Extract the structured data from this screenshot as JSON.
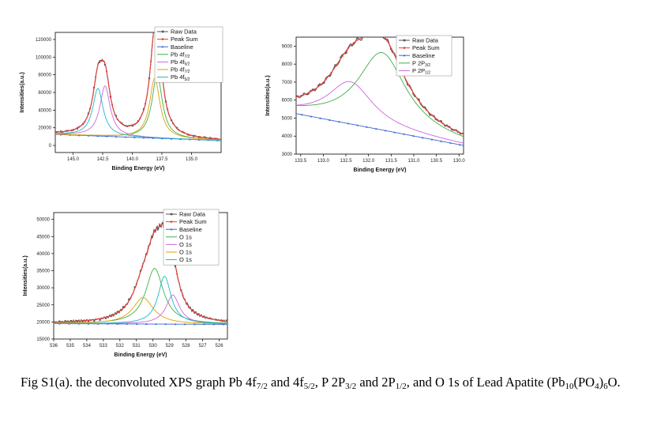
{
  "chart_data": [
    {
      "type": "line",
      "xlabel": "Binding Energy (eV)",
      "ylabel": "Intensities(a.u.)",
      "xlim": [
        146.5,
        132.5
      ],
      "ylim": [
        -8000,
        128000
      ],
      "xticks": [
        145.0,
        142.5,
        140.0,
        137.5,
        135.0
      ],
      "xticklabels": [
        "145.0",
        "142.5",
        "140.0",
        "137.5",
        "135.0"
      ],
      "yticks": [
        0,
        20000,
        40000,
        60000,
        80000,
        100000,
        120000
      ],
      "yticklabels": [
        "0",
        "20000",
        "40000",
        "60000",
        "80000",
        "100000",
        "120000"
      ],
      "legend_position": "top-right",
      "baseline": {
        "start": 12500,
        "end": 5500
      },
      "series": [
        {
          "name": "Raw Data",
          "color": "#555555",
          "marker": "square",
          "role": "raw"
        },
        {
          "name": "Peak Sum",
          "color": "#e8413a",
          "marker": "circle",
          "role": "sum"
        },
        {
          "name": "Baseline",
          "color": "#3a66d0",
          "marker": "triangle",
          "role": "baseline"
        },
        {
          "name": "Pb 4f",
          "sub": "7/2",
          "color": "#3cb04a",
          "role": "peak",
          "center": 137.9,
          "height": 72000,
          "fwhm": 1.05
        },
        {
          "name": "Pb 4f",
          "sub": "5/2",
          "color": "#cc66dd",
          "role": "peak",
          "center": 142.3,
          "height": 57000,
          "fwhm": 1.05
        },
        {
          "name": "Pb 4f",
          "sub": "7/2",
          "color": "#e0a000",
          "role": "peak",
          "center": 138.1,
          "height": 68000,
          "fwhm": 1.05
        },
        {
          "name": "Pb 4f",
          "sub": "5/2",
          "color": "#20b8c8",
          "role": "peak",
          "center": 142.9,
          "height": 54000,
          "fwhm": 1.05
        }
      ]
    },
    {
      "type": "line",
      "xlabel": "Binding Energy (eV)",
      "ylabel": "Intensities(a.u.)",
      "xlim": [
        133.6,
        129.9
      ],
      "ylim": [
        3000,
        9500
      ],
      "xticks": [
        133.5,
        133.0,
        132.5,
        132.0,
        131.5,
        131.0,
        130.5,
        130.0
      ],
      "xticklabels": [
        "133.5",
        "133.0",
        "132.5",
        "132.0",
        "131.5",
        "131.0",
        "130.5",
        "130.0"
      ],
      "yticks": [
        3000,
        4000,
        5000,
        6000,
        7000,
        8000,
        9000
      ],
      "yticklabels": [
        "3000",
        "4000",
        "5000",
        "6000",
        "7000",
        "8000",
        "9000"
      ],
      "legend_position": "top-right",
      "baseline": {
        "start": 5250,
        "end": 3480
      },
      "series": [
        {
          "name": "Raw Data",
          "color": "#555555",
          "marker": "square",
          "role": "raw"
        },
        {
          "name": "Peak Sum",
          "color": "#e8413a",
          "marker": "circle",
          "role": "sum"
        },
        {
          "name": "Baseline",
          "color": "#3a66d0",
          "marker": "triangle",
          "role": "baseline"
        },
        {
          "name": "P 2P",
          "sub": "3/2",
          "color": "#3cb04a",
          "role": "peak",
          "center": 131.7,
          "height": 4300,
          "fwhm": 1.3
        },
        {
          "name": "P 2P",
          "sub": "1/2",
          "color": "#cc66dd",
          "role": "peak",
          "center": 132.4,
          "height": 2350,
          "fwhm": 1.2
        }
      ]
    },
    {
      "type": "line",
      "xlabel": "Binding Energy (eV)",
      "ylabel": "Intensities(a.u.)",
      "xlim": [
        536,
        525.5
      ],
      "ylim": [
        15000,
        52000
      ],
      "xticks": [
        536,
        535,
        534,
        533,
        532,
        531,
        530,
        529,
        528,
        527,
        526
      ],
      "xticklabels": [
        "536",
        "535",
        "534",
        "533",
        "532",
        "531",
        "530",
        "529",
        "528",
        "527",
        "526"
      ],
      "yticks": [
        15000,
        20000,
        25000,
        30000,
        35000,
        40000,
        45000,
        50000
      ],
      "yticklabels": [
        "15000",
        "20000",
        "25000",
        "30000",
        "35000",
        "40000",
        "45000",
        "50000"
      ],
      "legend_position": "top-right",
      "baseline": {
        "start": 19500,
        "end": 19300
      },
      "series": [
        {
          "name": "Raw Data",
          "color": "#555555",
          "marker": "square",
          "role": "raw"
        },
        {
          "name": "Peak Sum",
          "color": "#e8413a",
          "marker": "circle",
          "role": "sum"
        },
        {
          "name": "Baseline",
          "color": "#3a66d0",
          "marker": "triangle",
          "role": "baseline"
        },
        {
          "name": "O 1s",
          "color": "#3cb04a",
          "role": "peak",
          "center": 529.9,
          "height": 16300,
          "fwhm": 1.3
        },
        {
          "name": "O 1s",
          "color": "#cc66dd",
          "role": "peak",
          "center": 528.8,
          "height": 8500,
          "fwhm": 1.0
        },
        {
          "name": "O 1s",
          "color": "#e0a000",
          "role": "peak",
          "center": 530.6,
          "height": 7700,
          "fwhm": 1.5
        },
        {
          "name": "O 1s",
          "color": "#20b8c8",
          "role": "peak",
          "center": 529.3,
          "height": 14000,
          "fwhm": 0.95
        }
      ]
    }
  ],
  "caption": {
    "parts": [
      {
        "t": "Fig S1(a). the deconvoluted XPS graph Pb 4f"
      },
      {
        "t": "7/2",
        "sub": true
      },
      {
        "t": " and 4f"
      },
      {
        "t": "5/2",
        "sub": true
      },
      {
        "t": ", P 2P"
      },
      {
        "t": "3/2",
        "sub": true
      },
      {
        "t": " and 2P"
      },
      {
        "t": "1/2",
        "sub": true
      },
      {
        "t": ", and O 1s of Lead Apatite (Pb"
      },
      {
        "t": "10",
        "sub": true
      },
      {
        "t": "(PO"
      },
      {
        "t": "4",
        "sub": true
      },
      {
        "t": ")"
      },
      {
        "t": "6",
        "sub": true
      },
      {
        "t": "O."
      }
    ]
  }
}
